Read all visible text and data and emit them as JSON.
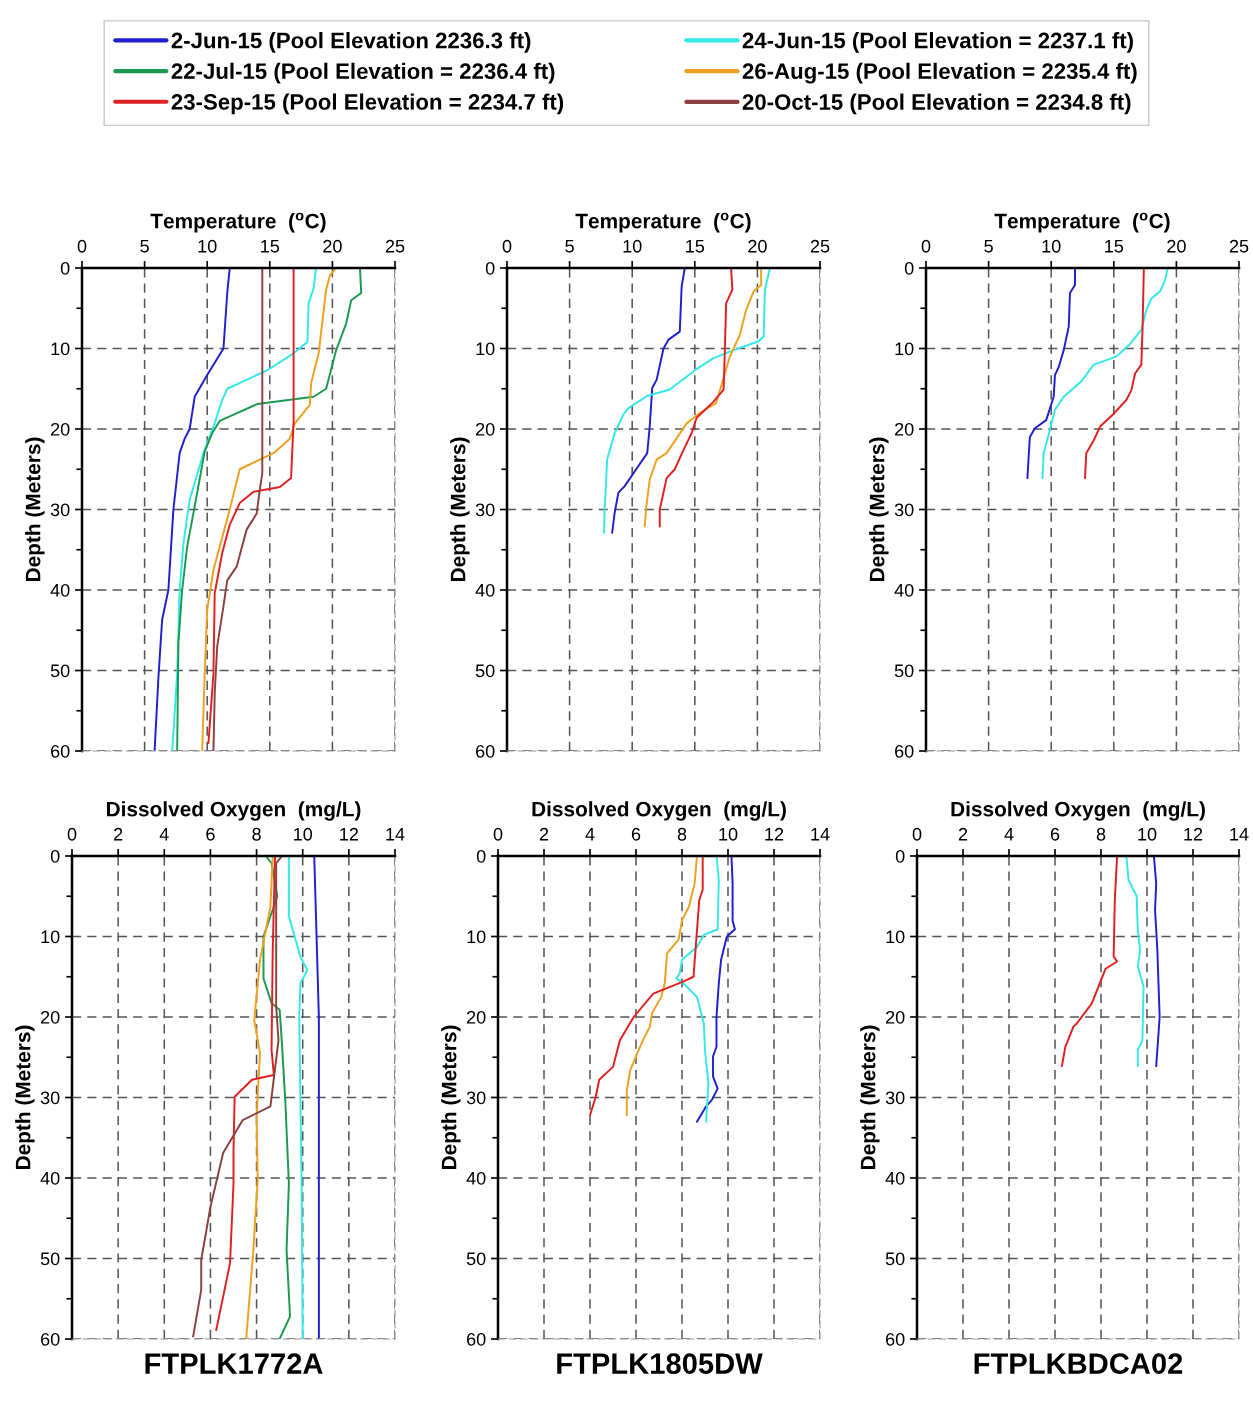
{
  "chart_data": [
    {
      "type": "line",
      "xlabel": "Temperature  ($^{o}$C)",
      "ylabel": "Depth (Meters)",
      "xlim": [
        0,
        25
      ],
      "xticks": [
        0,
        5,
        10,
        15,
        20,
        25
      ],
      "ylim": [
        60,
        0
      ],
      "yticks": [
        0,
        {
          "value": 5,
          "label": null
        },
        10,
        {
          "value": 15,
          "label": null
        },
        20,
        {
          "value": 25,
          "label": null
        },
        30,
        {
          "value": 35,
          "label": null
        },
        40,
        {
          "value": 45,
          "label": null
        },
        50,
        {
          "value": 55,
          "label": null
        },
        60
      ],
      "grid": true,
      "legend": "top",
      "series": [
        {
          "name": "2-Jun-15 (Pool Elevation 2236.3 ft)",
          "color": "#1f1fd0",
          "x": [
            11.8,
            11.6,
            11.3,
            10.0,
            9.0,
            8.6,
            8.2,
            7.8,
            7.3,
            6.9,
            6.4,
            6.1,
            5.8
          ],
          "values": [
            0,
            3.1,
            10,
            13.3,
            16,
            20,
            21.2,
            23,
            30,
            40,
            43.7,
            51,
            60
          ]
        },
        {
          "name": "24-Jun-15 (Pool Elevation = 2237.1 ft)",
          "color": "#33e8e8",
          "x": [
            18.7,
            18.5,
            18.1,
            18.0,
            16.9,
            14.8,
            11.6,
            11.2,
            10.5,
            9.7,
            8.6,
            8.1,
            7.8,
            7.6,
            7.4,
            7.2
          ],
          "values": [
            0,
            2.5,
            4.4,
            9.2,
            10.6,
            12.7,
            15,
            16.4,
            19.7,
            23,
            28.8,
            34.2,
            40,
            50.4,
            55.3,
            60
          ]
        },
        {
          "name": "22-Jul-15 (Pool Elevation = 2236.4 ft)",
          "color": "#1a9a50",
          "x": [
            22.2,
            22.3,
            21.5,
            21.1,
            20.3,
            19.5,
            18.5,
            14.0,
            11.0,
            10.4,
            9.8,
            9.0,
            8.4,
            8.0,
            7.7,
            7.6
          ],
          "values": [
            0,
            3.1,
            4,
            6.9,
            10.2,
            15,
            16,
            16.9,
            19,
            20.5,
            22.8,
            29.6,
            34.6,
            40,
            46.6,
            60
          ]
        },
        {
          "name": "26-Aug-15 (Pool Elevation = 2235.4 ft)",
          "color": "#f0a020",
          "x": [
            20.3,
            19.8,
            19.5,
            18.9,
            18.3,
            18.2,
            17.0,
            16.6,
            15.3,
            14.2,
            12.6,
            11.8,
            10.5,
            10.0,
            9.8,
            9.6
          ],
          "values": [
            0,
            0.9,
            2.7,
            10.6,
            14.3,
            17,
            19.3,
            21.2,
            23,
            23.8,
            25,
            30,
            37.5,
            42.5,
            50.4,
            60
          ]
        },
        {
          "name": "23-Sep-15 (Pool Elevation = 2234.7 ft)",
          "color": "#e02020",
          "x": [
            16.9,
            16.9,
            16.7,
            15.8,
            13.7,
            12.6,
            11.8,
            11.2,
            10.6,
            10.5,
            10.1
          ],
          "values": [
            0,
            19,
            26.1,
            27.2,
            27.8,
            29.2,
            31.9,
            35.4,
            40.4,
            50.4,
            59
          ]
        },
        {
          "name": "20-Oct-15 (Pool Elevation = 2234.8 ft)",
          "color": "#8b4040",
          "x": [
            14.4,
            14.4,
            14.2,
            13.95,
            13.15,
            12.35,
            11.6,
            11.3,
            10.8,
            10.6,
            10.5
          ],
          "values": [
            0,
            25.5,
            27.6,
            30.5,
            32.5,
            37.1,
            38.8,
            42,
            47,
            52.8,
            60
          ]
        }
      ]
    },
    {
      "type": "line",
      "xlabel": "Temperature  ($^{o}$C)",
      "ylabel": "Depth (Meters)",
      "xlim": [
        0,
        25
      ],
      "xticks": [
        0,
        5,
        10,
        15,
        20,
        25
      ],
      "ylim": [
        60,
        0
      ],
      "yticks": [
        0,
        {
          "value": 5,
          "label": null
        },
        10,
        {
          "value": 15,
          "label": null
        },
        20,
        {
          "value": 25,
          "label": null
        },
        30,
        {
          "value": 35,
          "label": null
        },
        40,
        {
          "value": 45,
          "label": null
        },
        50,
        {
          "value": 55,
          "label": null
        },
        60
      ],
      "grid": true,
      "series": [
        {
          "color": "#1f1fd0",
          "x": [
            14.2,
            13.95,
            13.8,
            12.9,
            12.5,
            11.95,
            11.6,
            11.4,
            11.2,
            10.1,
            9.4,
            8.9,
            8.6,
            8.4
          ],
          "values": [
            0,
            2.3,
            7.9,
            8.9,
            10,
            13.9,
            14.9,
            19.7,
            23,
            25.5,
            27.1,
            27.9,
            30.4,
            32.9
          ]
        },
        {
          "color": "#33e8e8",
          "x": [
            21.0,
            20.6,
            20.5,
            20.1,
            18.1,
            16.5,
            15.1,
            13.0,
            11.2,
            9.7,
            9.3,
            8.6,
            8.0,
            7.8,
            7.75
          ],
          "values": [
            0,
            2.7,
            8.5,
            9.1,
            10.2,
            11.2,
            12.6,
            15.1,
            15.9,
            17.4,
            18.2,
            20.5,
            23.8,
            30,
            32.9
          ]
        },
        {
          "color": "#f0a020",
          "x": [
            20.3,
            20.3,
            19.7,
            19.1,
            18.6,
            17.8,
            17.1,
            16.7,
            15.4,
            14.35,
            12.75,
            11.95,
            11.4,
            11.1,
            11.0
          ],
          "values": [
            0,
            2.1,
            2.9,
            5.2,
            8.3,
            11,
            14.7,
            16.8,
            18,
            19.3,
            23,
            23.8,
            26.3,
            30,
            32.1
          ]
        },
        {
          "color": "#e02020",
          "x": [
            17.9,
            18.0,
            17.5,
            17.4,
            17.3,
            16.5,
            15.15,
            14.75,
            14.1,
            13.4,
            12.75,
            12.2,
            12.2
          ],
          "values": [
            0,
            2.7,
            4.4,
            10.2,
            15.1,
            16.6,
            18.6,
            20.5,
            22.6,
            25,
            26.1,
            30,
            32.1
          ]
        }
      ]
    },
    {
      "type": "line",
      "xlabel": "Temperature  ($^{o}$C)",
      "ylabel": "Depth (Meters)",
      "xlim": [
        0,
        25
      ],
      "xticks": [
        0,
        5,
        10,
        15,
        20,
        25
      ],
      "ylim": [
        60,
        0
      ],
      "yticks": [
        0,
        {
          "value": 5,
          "label": null
        },
        10,
        {
          "value": 15,
          "label": null
        },
        20,
        {
          "value": 25,
          "label": null
        },
        30,
        {
          "value": 35,
          "label": null
        },
        40,
        {
          "value": 45,
          "label": null
        },
        50,
        {
          "value": 55,
          "label": null
        },
        60
      ],
      "grid": true,
      "series": [
        {
          "color": "#1f1fd0",
          "x": [
            11.9,
            11.9,
            11.5,
            11.4,
            11.0,
            10.6,
            10.3,
            10.2,
            9.6,
            8.7,
            8.3,
            8.2,
            8.1
          ],
          "values": [
            0,
            2.1,
            3.1,
            7.3,
            10.2,
            12.3,
            13.3,
            16,
            18.9,
            19.9,
            21,
            23.4,
            26.1
          ]
        },
        {
          "color": "#33e8e8",
          "x": [
            19.3,
            19.1,
            18.7,
            18.0,
            17.6,
            17.2,
            16.2,
            15.2,
            13.4,
            12.4,
            11.0,
            10.3,
            9.9,
            9.4,
            9.3
          ],
          "values": [
            0,
            1.5,
            2.9,
            3.8,
            5.2,
            7.7,
            9.6,
            11,
            12,
            14.1,
            16,
            17.6,
            20.1,
            23,
            26.1
          ]
        },
        {
          "color": "#e02020",
          "x": [
            17.4,
            17.3,
            17.2,
            16.7,
            16.4,
            16.0,
            15.0,
            13.9,
            13.4,
            12.8,
            12.7
          ],
          "values": [
            0,
            7.3,
            12,
            13.1,
            15.2,
            16.4,
            18.1,
            19.7,
            21.4,
            23,
            26.1
          ]
        }
      ]
    },
    {
      "type": "line",
      "xlabel": "Dissolved Oxygen  (mg/L)",
      "ylabel": "Depth (Meters)",
      "xlim": [
        0,
        14
      ],
      "xticks": [
        0,
        2,
        4,
        6,
        8,
        10,
        12,
        14
      ],
      "ylim": [
        60,
        0
      ],
      "yticks": [
        0,
        {
          "value": 5,
          "label": null
        },
        10,
        {
          "value": 15,
          "label": null
        },
        20,
        {
          "value": 25,
          "label": null
        },
        30,
        {
          "value": 35,
          "label": null
        },
        40,
        {
          "value": 45,
          "label": null
        },
        50,
        {
          "value": 55,
          "label": null
        },
        60
      ],
      "grid": true,
      "annotations": [
        "FTPLK1772A"
      ],
      "series": [
        {
          "color": "#1f1fd0",
          "x": [
            10.5,
            10.6,
            10.7,
            10.7,
            10.7
          ],
          "values": [
            0,
            10,
            20,
            40.2,
            60
          ]
        },
        {
          "color": "#33e8e8",
          "x": [
            9.4,
            9.4,
            9.9,
            10.2,
            9.9,
            9.85,
            9.95,
            10.0
          ],
          "values": [
            0,
            7.5,
            12.5,
            14.2,
            15.8,
            20,
            40.2,
            60
          ]
        },
        {
          "color": "#1a9a50",
          "x": [
            8.4,
            8.65,
            8.9,
            8.3,
            8.3,
            8.65,
            9.0,
            9.1,
            9.25,
            9.4,
            9.3,
            9.45,
            9.0
          ],
          "values": [
            0,
            0.9,
            5,
            10,
            15.2,
            18.3,
            19.1,
            23.3,
            30.7,
            40.7,
            48.9,
            57.2,
            60
          ]
        },
        {
          "color": "#f0a020",
          "x": [
            8.7,
            8.6,
            8.15,
            7.9,
            8.15,
            8.0,
            8.05,
            7.85,
            7.55
          ],
          "values": [
            0,
            6.3,
            12.9,
            20.4,
            24.5,
            32.4,
            40.2,
            49.4,
            60
          ]
        },
        {
          "color": "#e02020",
          "x": [
            8.8,
            8.7,
            8.65,
            8.75,
            7.8,
            7.05,
            7.0,
            7.0,
            6.85,
            6.25
          ],
          "values": [
            0,
            11.7,
            24.1,
            27.2,
            27.8,
            29.9,
            36.5,
            40.7,
            50.6,
            58.9
          ]
        },
        {
          "color": "#8b4040",
          "x": [
            9.1,
            8.85,
            8.85,
            8.95,
            8.6,
            7.4,
            6.55,
            6.0,
            5.6,
            5.6,
            5.25
          ],
          "values": [
            0,
            0.9,
            18.7,
            22.9,
            31.1,
            32.8,
            36.9,
            43.6,
            50.2,
            53.9,
            59.7
          ]
        }
      ]
    },
    {
      "type": "line",
      "xlabel": "Dissolved Oxygen  (mg/L)",
      "ylabel": "Depth (Meters)",
      "xlim": [
        0,
        14
      ],
      "xticks": [
        0,
        2,
        4,
        6,
        8,
        10,
        12,
        14
      ],
      "ylim": [
        60,
        0
      ],
      "yticks": [
        0,
        {
          "value": 5,
          "label": null
        },
        10,
        {
          "value": 15,
          "label": null
        },
        20,
        {
          "value": 25,
          "label": null
        },
        30,
        {
          "value": 35,
          "label": null
        },
        40,
        {
          "value": 45,
          "label": null
        },
        50,
        {
          "value": 55,
          "label": null
        },
        60
      ],
      "grid": true,
      "annotations": [
        "FTPLK1805DW"
      ],
      "series": [
        {
          "color": "#1f1fd0",
          "x": [
            10.15,
            10.2,
            10.2,
            10.3,
            9.95,
            9.7,
            9.6,
            9.5,
            9.5,
            9.35,
            9.35,
            9.55,
            9.3,
            9.05,
            8.65
          ],
          "values": [
            0,
            3.4,
            8,
            9.1,
            10,
            12.9,
            15.8,
            20,
            23.7,
            24.9,
            27.4,
            28.9,
            30.3,
            31.1,
            33
          ]
        },
        {
          "color": "#33e8e8",
          "x": [
            9.5,
            9.6,
            9.55,
            8.95,
            8.65,
            8.0,
            7.9,
            7.75,
            8.05,
            8.65,
            8.95,
            9.0,
            9.15,
            9.05
          ],
          "values": [
            0,
            3,
            9.1,
            9.8,
            11.3,
            12.9,
            14.6,
            15.2,
            15.8,
            17.5,
            20.8,
            24.1,
            28.2,
            33
          ]
        },
        {
          "color": "#f0a020",
          "x": [
            8.65,
            8.55,
            8.3,
            8.0,
            7.85,
            7.35,
            7.25,
            7.1,
            6.7,
            6.6,
            6.3,
            6.0,
            5.75,
            5.6,
            5.6
          ],
          "values": [
            0,
            3.4,
            6.3,
            8,
            10.4,
            12.1,
            15.8,
            17.5,
            19.5,
            21.2,
            22.9,
            24.9,
            26.6,
            29.1,
            32.2
          ]
        },
        {
          "color": "#e02020",
          "x": [
            8.9,
            8.9,
            8.75,
            8.5,
            8.05,
            6.75,
            5.9,
            5.3,
            5.0,
            4.4,
            4.25,
            4.0
          ],
          "values": [
            0,
            4.2,
            5.5,
            15,
            15.6,
            17.1,
            20,
            22.9,
            26.2,
            27.8,
            29.9,
            32.2
          ]
        }
      ]
    },
    {
      "type": "line",
      "xlabel": "Dissolved Oxygen  (mg/L)",
      "ylabel": "Depth (Meters)",
      "xlim": [
        0,
        14
      ],
      "xticks": [
        0,
        2,
        4,
        6,
        8,
        10,
        12,
        14
      ],
      "ylim": [
        60,
        0
      ],
      "yticks": [
        0,
        {
          "value": 5,
          "label": null
        },
        10,
        {
          "value": 15,
          "label": null
        },
        20,
        {
          "value": 25,
          "label": null
        },
        30,
        {
          "value": 35,
          "label": null
        },
        40,
        {
          "value": 45,
          "label": null
        },
        50,
        {
          "value": 55,
          "label": null
        },
        60
      ],
      "grid": true,
      "annotations": [
        "FTPLKBDCA02"
      ],
      "series": [
        {
          "color": "#1f1fd0",
          "x": [
            10.3,
            10.4,
            10.35,
            10.45,
            10.55,
            10.45,
            10.4
          ],
          "values": [
            0,
            3.4,
            6.7,
            11.7,
            20,
            24.1,
            26.1
          ]
        },
        {
          "color": "#33e8e8",
          "x": [
            9.1,
            9.2,
            9.55,
            9.6,
            9.7,
            9.6,
            9.85,
            9.8,
            9.6,
            9.6
          ],
          "values": [
            0,
            3,
            5,
            9.2,
            11.7,
            13.7,
            16.2,
            22.9,
            24.1,
            26.1
          ]
        },
        {
          "color": "#e02020",
          "x": [
            8.7,
            8.6,
            8.55,
            8.7,
            8.2,
            7.95,
            7.6,
            6.95,
            6.8,
            6.45,
            6.3
          ],
          "values": [
            0,
            5.5,
            12.5,
            13.1,
            14,
            15.8,
            18.3,
            20.8,
            21.2,
            23.7,
            26.1
          ]
        }
      ]
    }
  ]
}
